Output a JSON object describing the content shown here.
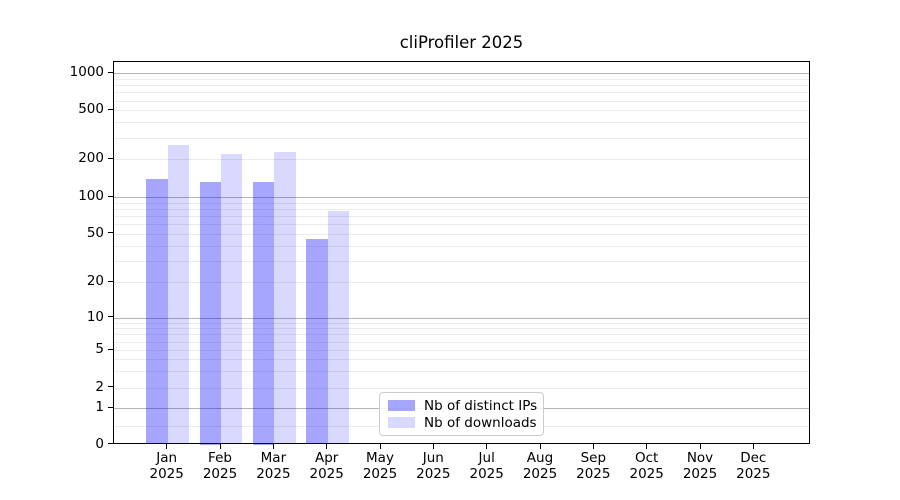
{
  "title": "cliProfiler 2025",
  "chart_data": {
    "type": "bar",
    "title": "cliProfiler 2025",
    "categories": [
      "Jan",
      "Feb",
      "Mar",
      "Apr",
      "May",
      "Jun",
      "Jul",
      "Aug",
      "Sep",
      "Oct",
      "Nov",
      "Dec"
    ],
    "year_label": "2025",
    "series": [
      {
        "name": "Nb of distinct IPs",
        "color": "rgba(0,0,255,0.35)",
        "values": [
          140,
          133,
          133,
          45,
          0,
          0,
          0,
          0,
          0,
          0,
          0,
          0
        ]
      },
      {
        "name": "Nb of downloads",
        "color": "rgba(0,0,255,0.15)",
        "values": [
          262,
          220,
          229,
          77,
          0,
          0,
          0,
          0,
          0,
          0,
          0,
          0
        ]
      }
    ],
    "xlabel": "",
    "ylabel": "",
    "yscale": "symlog",
    "ylim": [
      0,
      1300
    ],
    "ytick_labels": [
      "0",
      "1",
      "2",
      "5",
      "10",
      "20",
      "50",
      "100",
      "200",
      "500",
      "1000"
    ],
    "ytick_values": [
      0,
      1,
      2,
      5,
      10,
      20,
      50,
      100,
      200,
      500,
      1000
    ],
    "grid": "both",
    "grid_major_color": "#b4b4b4",
    "grid_minor_color": "#ebebeb",
    "legend_position": "lower center-left inside plot"
  }
}
